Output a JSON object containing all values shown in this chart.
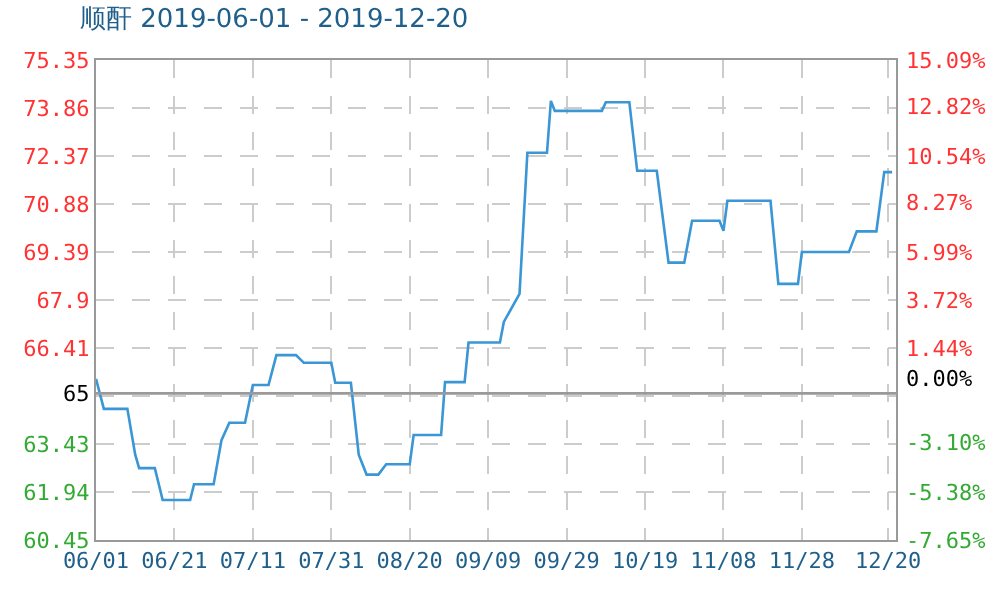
{
  "chart_data": {
    "type": "line",
    "title": "顺酐 2019-06-01 - 2019-12-20",
    "x": [
      "2019-06-01",
      "2019-06-03",
      "2019-06-09",
      "2019-06-11",
      "2019-06-12",
      "2019-06-16",
      "2019-06-18",
      "2019-06-25",
      "2019-06-26",
      "2019-07-01",
      "2019-07-03",
      "2019-07-05",
      "2019-07-09",
      "2019-07-11",
      "2019-07-15",
      "2019-07-17",
      "2019-07-22",
      "2019-07-24",
      "2019-07-31",
      "2019-08-01",
      "2019-08-05",
      "2019-08-07",
      "2019-08-09",
      "2019-08-12",
      "2019-08-14",
      "2019-08-20",
      "2019-08-21",
      "2019-08-28",
      "2019-08-29",
      "2019-09-03",
      "2019-09-04",
      "2019-09-12",
      "2019-09-13",
      "2019-09-17",
      "2019-09-19",
      "2019-09-24",
      "2019-09-25",
      "2019-09-26",
      "2019-10-08",
      "2019-10-09",
      "2019-10-15",
      "2019-10-17",
      "2019-10-22",
      "2019-10-25",
      "2019-10-29",
      "2019-10-31",
      "2019-11-07",
      "2019-11-08",
      "2019-11-09",
      "2019-11-20",
      "2019-11-22",
      "2019-11-27",
      "2019-11-28",
      "2019-12-10",
      "2019-12-12",
      "2019-12-17",
      "2019-12-19",
      "2019-12-21"
    ],
    "series": [
      {
        "color": "#3a96d4",
        "values": [
          65.45,
          64.52,
          64.52,
          63.1,
          62.68,
          62.68,
          61.69,
          61.69,
          62.18,
          62.18,
          63.55,
          64.09,
          64.09,
          65.26,
          65.26,
          66.19,
          66.19,
          65.95,
          65.95,
          65.33,
          65.33,
          63.1,
          62.48,
          62.48,
          62.8,
          62.8,
          63.71,
          63.71,
          65.35,
          65.35,
          66.58,
          66.58,
          67.22,
          68.09,
          72.47,
          72.47,
          74.08,
          73.77,
          73.77,
          74.04,
          74.04,
          71.91,
          71.91,
          69.06,
          69.06,
          70.36,
          70.36,
          70.05,
          70.98,
          70.98,
          68.4,
          68.4,
          69.39,
          69.39,
          70.03,
          70.03,
          71.87,
          71.87
        ]
      }
    ],
    "xlim": [
      "2019-06-01",
      "2019-12-22"
    ],
    "xticks": [
      {
        "value": "2019-06-01",
        "label": "06/01"
      },
      {
        "value": "2019-06-21",
        "label": "06/21"
      },
      {
        "value": "2019-07-11",
        "label": "07/11"
      },
      {
        "value": "2019-07-31",
        "label": "07/31"
      },
      {
        "value": "2019-08-20",
        "label": "08/20"
      },
      {
        "value": "2019-09-09",
        "label": "09/09"
      },
      {
        "value": "2019-09-29",
        "label": "09/29"
      },
      {
        "value": "2019-10-19",
        "label": "10/19"
      },
      {
        "value": "2019-11-08",
        "label": "11/08"
      },
      {
        "value": "2019-11-28",
        "label": "11/28"
      },
      {
        "value": "2019-12-20",
        "label": "12/20"
      }
    ],
    "ylim": [
      60.45,
      75.35
    ],
    "yticks": [
      60.45,
      61.94,
      63.43,
      {
        "value": 64.92,
        "label": null
      },
      65,
      66.41,
      67.9,
      69.39,
      70.88,
      72.37,
      73.86,
      75.35
    ],
    "y2lim": [
      -7.65,
      15.09
    ],
    "y2ticks": [
      {
        "value": -7.65,
        "label": "-7.65%"
      },
      {
        "value": -5.38,
        "label": "-5.38%"
      },
      {
        "value": -3.1,
        "label": "-3.10%"
      },
      {
        "value": 0,
        "label": "0.00%"
      },
      {
        "value": 1.44,
        "label": "1.44%"
      },
      {
        "value": 3.72,
        "label": "3.72%"
      },
      {
        "value": 5.99,
        "label": "5.99%"
      },
      {
        "value": 8.27,
        "label": "8.27%"
      },
      {
        "value": 10.54,
        "label": "10.54%"
      },
      {
        "value": 12.82,
        "label": "12.82%"
      },
      {
        "value": 15.09,
        "label": "15.09%"
      }
    ],
    "ref_lines": [
      {
        "axis": "y",
        "value": 65,
        "color": "#999999"
      }
    ],
    "grid": true,
    "legend": false,
    "marker": "none",
    "line_style": "solid"
  }
}
